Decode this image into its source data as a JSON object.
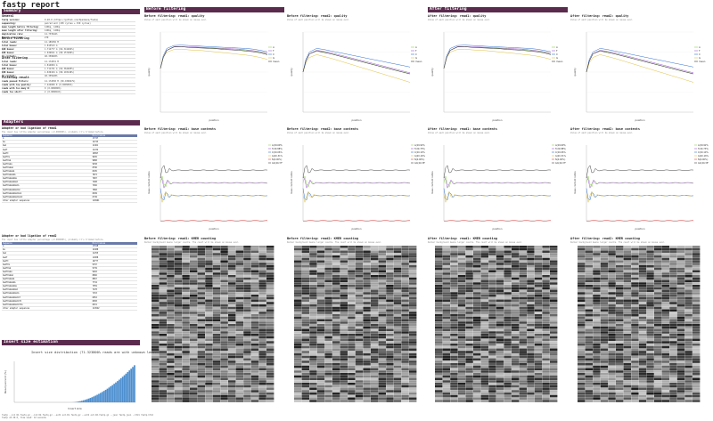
{
  "page_title": "fastp report",
  "sections": {
    "summary": "Summary",
    "adapters": "Adapters",
    "insert": "Insert size estimation",
    "before": "Before filtering",
    "after": "After filtering"
  },
  "summary": {
    "general_label": "General",
    "general": [
      {
        "k": "fastp version:",
        "v": "0.20.0 (https://github.com/OpenGene/fastp)"
      },
      {
        "k": "sequencing:",
        "v": "paired end (150 cycles + 150 cycles)"
      },
      {
        "k": "mean length before filtering:",
        "v": "149bp, 149bp"
      },
      {
        "k": "mean length after filtering:",
        "v": "149bp, 149bp"
      },
      {
        "k": "duplication rate:",
        "v": "12.733944%"
      },
      {
        "k": "Insert size peak:",
        "v": "270"
      }
    ],
    "before_label": "Before filtering",
    "before": [
      {
        "k": "total reads:",
        "v": "12.180256 M"
      },
      {
        "k": "total bases:",
        "v": "1.815513 G"
      },
      {
        "k": "Q20 bases:",
        "v": "1.712777 G (94.341482%)"
      },
      {
        "k": "Q30 bases:",
        "v": "1.636811 G (90.157286%)"
      },
      {
        "k": "GC content:",
        "v": "40.359820%"
      }
    ],
    "after_label": "After filtering",
    "after": [
      {
        "k": "total reads:",
        "v": "12.172831 M"
      },
      {
        "k": "total bases:",
        "v": "1.814004 G"
      },
      {
        "k": "Q20 bases:",
        "v": "1.711741 G (94.362485%)"
      },
      {
        "k": "Q30 bases:",
        "v": "1.636104 G (90.193149%)"
      },
      {
        "k": "GC content:",
        "v": "40.355628%"
      }
    ],
    "result_label": "Filtering result",
    "result": [
      {
        "k": "reads passed filters:",
        "v": "12.172830 M (99.939047%)"
      },
      {
        "k": "reads with low quality:",
        "v": "7.424000 K (0.060950%)"
      },
      {
        "k": "reads with too many N:",
        "v": "0 (0.000000%)"
      },
      {
        "k": "reads too short:",
        "v": "2 (0.000016%)"
      }
    ]
  },
  "adapters": {
    "read1_title": "Adapter or bad ligation of read1",
    "read1_note": "The input has little adapter percentage (~0.000000%), probably it's trimmed before.",
    "headers": [
      "Sequence",
      "Occurrences"
    ],
    "read1_rows": [
      [
        "A",
        "17747"
      ],
      [
        "AG",
        "12743"
      ],
      [
        "AGA",
        "11461"
      ],
      [
        "AGAT",
        "11234"
      ],
      [
        "AGATC",
        "10997"
      ],
      [
        "AGATCG",
        "9945"
      ],
      [
        "AGATCGG",
        "9888"
      ],
      [
        "AGATCGGA",
        "9538"
      ],
      [
        "AGATCGGAA",
        "8796"
      ],
      [
        "AGATCGGAAG",
        "8195"
      ],
      [
        "AGATCGGAAGA",
        "7872"
      ],
      [
        "AGATCGGAAGAG",
        "7687"
      ],
      [
        "AGATCGGAAGAGC",
        "7408"
      ],
      [
        "AGATCGGAAGAGCA",
        "7266"
      ],
      [
        "AGATCGGAAGAGCAC",
        "7060"
      ],
      [
        "AGATCGGAAGAGCACA",
        "6949"
      ],
      [
        "AGATCGGAAGAGCACAC",
        "6749"
      ],
      [
        "other adapter sequences",
        "116961"
      ]
    ],
    "read2_title": "Adapter or bad ligation of read2",
    "read2_note": "The input has little adapter percentage (~0.000000%), probably it's trimmed before.",
    "read2_rows": [
      [
        "A",
        "17018"
      ],
      [
        "AG",
        "12488"
      ],
      [
        "AGA",
        "11255"
      ],
      [
        "AGAT",
        "11008"
      ],
      [
        "AGATC",
        "10777"
      ],
      [
        "AGATCG",
        "9797"
      ],
      [
        "AGATCGG",
        "9739"
      ],
      [
        "AGATCGGA",
        "9402"
      ],
      [
        "AGATCGGAA",
        "8666"
      ],
      [
        "AGATCGGAAG",
        "8067"
      ],
      [
        "AGATCGGAAGA",
        "7734"
      ],
      [
        "AGATCGGAAGAG",
        "7559"
      ],
      [
        "AGATCGGAAGAGC",
        "7278"
      ],
      [
        "AGATCGGAAGAGCG",
        "7153"
      ],
      [
        "AGATCGGAAGAGCGT",
        "6952"
      ],
      [
        "AGATCGGAAGAGCGTC",
        "6830"
      ],
      [
        "AGATCGGAAGAGCGTCG",
        "6631"
      ],
      [
        "other adapter sequences",
        "114542"
      ]
    ]
  },
  "insert": {
    "chart_title": "Insert size distribution (71.323800% reads are with unknown length)",
    "xlabel": "Insert size",
    "ylabel": "Read percent (%)"
  },
  "quality_labels": [
    "A",
    "T",
    "C",
    "G",
    "mean"
  ],
  "content_labels_r1": [
    "A(29.69%)",
    "T(29.88%)",
    "C(20.06%)",
    "G(20.31%)",
    "N(0.00%)",
    "GC(40.37%)"
  ],
  "content_labels_r2": [
    "A(29.92%)",
    "T(29.73%)",
    "C(20.19%)",
    "G(20.16%)",
    "N(0.00%)",
    "GC(40.35%)"
  ],
  "panels": [
    {
      "quality_title": "Before filtering: read1: quality",
      "quality_note": "Value of each position will be shown on mouse over.",
      "content_title": "Before filtering: read1: base contents",
      "content_note": "Value of each position will be shown on mouse over.",
      "kmer_title": "Before filtering: read1: KMER counting",
      "kmer_note": "Darker background means larger counts. The count will be shown on mouse over.",
      "read": 1
    },
    {
      "quality_title": "Before filtering: read2: quality",
      "quality_note": "Value of each position will be shown on mouse over.",
      "content_title": "Before filtering: read2: base contents",
      "content_note": "Value of each position will be shown on mouse over.",
      "kmer_title": "Before filtering: read2: KMER counting",
      "kmer_note": "Darker background means larger counts. The count will be shown on mouse over.",
      "read": 2
    },
    {
      "quality_title": "After filtering: read1: quality",
      "quality_note": "Value of each position will be shown on mouse over.",
      "content_title": "After filtering: read1: base contents",
      "content_note": "Value of each position will be shown on mouse over.",
      "kmer_title": "After filtering: read1: KMER counting",
      "kmer_note": "Darker background means larger counts. The count will be shown on mouse over.",
      "read": 1
    },
    {
      "quality_title": "After filtering: read2: quality",
      "quality_note": "Value of each position will be shown on mouse over.",
      "content_title": "After filtering: read2: base contents",
      "content_note": "Value of each position will be shown on mouse over.",
      "kmer_title": "After filtering: read2: KMER counting",
      "kmer_note": "Darker background means larger counts. The count will be shown on mouse over.",
      "read": 2
    }
  ],
  "axis": {
    "position": "position",
    "quality": "quality",
    "content": "base content ratios"
  },
  "footer": [
    "fastp --in1 R1.fastq.gz --in2 R2.fastq.gz --out1 out.R1.fastq.gz --out2 out.R2.fastq.gz --json fastp.json --html fastp.html",
    "fastp v0.20.0, time used: 42 seconds"
  ],
  "colors": {
    "section": "#5b2b4e",
    "A": "#8fd14f",
    "T": "#9c59d1",
    "C": "#2f6fd1",
    "G": "#e0c040",
    "N": "#e04040",
    "GC": "#444444",
    "mean": "#333333",
    "bar": "#4c8ecf"
  },
  "chart_data": [
    {
      "type": "line",
      "title": "Before filtering: read1: quality",
      "xlabel": "position",
      "ylabel": "quality",
      "x": [
        1,
        5,
        10,
        20,
        30,
        40,
        50,
        60,
        70,
        80,
        90,
        100,
        110,
        120,
        130,
        140,
        150
      ],
      "ylim": [
        20,
        42
      ],
      "series": [
        {
          "name": "A",
          "values": [
            32,
            35,
            37,
            38,
            38,
            37.8,
            37.8,
            37.7,
            37.6,
            37.5,
            37.4,
            37.3,
            37.2,
            37.0,
            36.8,
            36.5,
            36.0
          ]
        },
        {
          "name": "T",
          "values": [
            32,
            35,
            37,
            38,
            38,
            37.9,
            37.9,
            37.8,
            37.7,
            37.6,
            37.5,
            37.4,
            37.3,
            37.1,
            36.9,
            36.6,
            36.2
          ]
        },
        {
          "name": "C",
          "values": [
            32,
            35.5,
            37.5,
            38.3,
            38.4,
            38.3,
            38.2,
            38.1,
            38.0,
            37.9,
            37.8,
            37.7,
            37.6,
            37.5,
            37.3,
            37.0,
            36.6
          ]
        },
        {
          "name": "G",
          "values": [
            32,
            35,
            36.5,
            37.2,
            37.3,
            37.1,
            37.0,
            36.9,
            36.7,
            36.5,
            36.3,
            36.1,
            35.9,
            35.7,
            35.4,
            35.0,
            34.5
          ]
        },
        {
          "name": "mean",
          "values": [
            32,
            35,
            37,
            37.9,
            38,
            37.8,
            37.7,
            37.6,
            37.5,
            37.4,
            37.2,
            37.1,
            37.0,
            36.8,
            36.6,
            36.3,
            35.8
          ]
        }
      ]
    },
    {
      "type": "line",
      "title": "Before filtering: read2: quality",
      "xlabel": "position",
      "ylabel": "quality",
      "x": [
        1,
        5,
        10,
        20,
        30,
        40,
        50,
        60,
        70,
        80,
        90,
        100,
        110,
        120,
        130,
        140,
        150
      ],
      "ylim": [
        20,
        42
      ],
      "series": [
        {
          "name": "A",
          "values": [
            31,
            34,
            36,
            37,
            36.5,
            36,
            35.5,
            35,
            34.5,
            34,
            33.5,
            33,
            32.5,
            32,
            31.5,
            31,
            30.5
          ]
        },
        {
          "name": "T",
          "values": [
            31,
            34,
            36,
            37,
            36.7,
            36.3,
            35.8,
            35.3,
            34.8,
            34.3,
            33.8,
            33.3,
            32.8,
            32.3,
            31.8,
            31.3,
            30.8
          ]
        },
        {
          "name": "C",
          "values": [
            31,
            34.5,
            36.5,
            37.5,
            37.2,
            36.8,
            36.4,
            36.0,
            35.6,
            35.2,
            34.8,
            34.4,
            34.0,
            33.6,
            33.2,
            32.8,
            32.4
          ]
        },
        {
          "name": "G",
          "values": [
            31,
            33.5,
            35,
            35.8,
            35.3,
            34.8,
            34.2,
            33.6,
            33.0,
            32.4,
            31.8,
            31.2,
            30.6,
            30.0,
            29.4,
            28.8,
            28.2
          ]
        },
        {
          "name": "mean",
          "values": [
            31,
            34,
            36,
            36.8,
            36.4,
            36,
            35.5,
            35,
            34.5,
            34,
            33.5,
            33,
            32.5,
            32,
            31.5,
            31,
            30.5
          ]
        }
      ]
    }
  ]
}
